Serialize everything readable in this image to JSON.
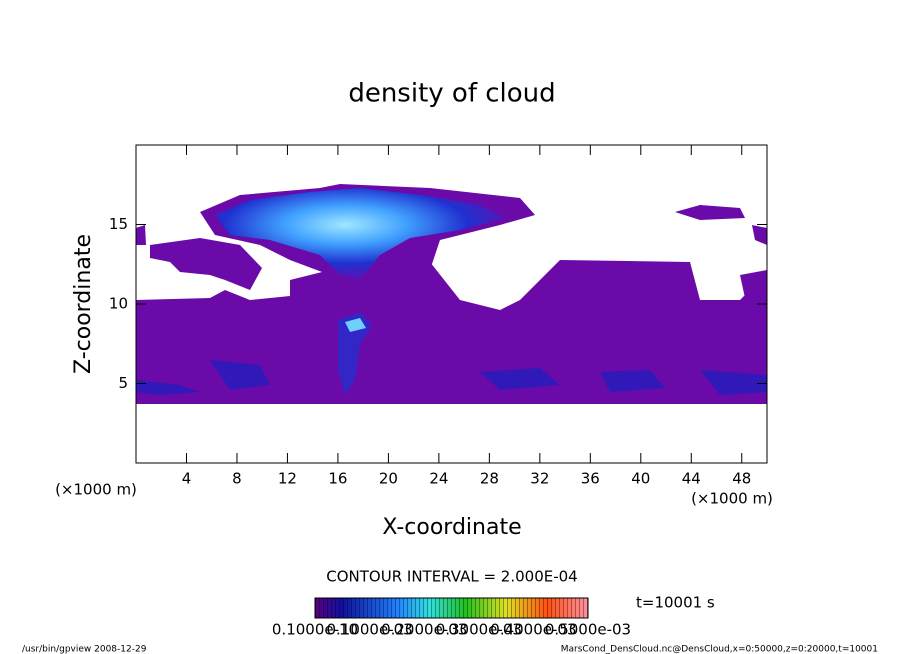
{
  "chart_data": {
    "type": "contour",
    "title": "density of cloud",
    "x_label": "X-coordinate",
    "y_label": "Z-coordinate",
    "x_unit": "(×1000 m)",
    "y_unit": "(×1000 m)",
    "xlim": [
      0,
      50
    ],
    "ylim": [
      0,
      20
    ],
    "xticks": [
      4,
      8,
      12,
      16,
      20,
      24,
      28,
      32,
      36,
      40,
      44,
      48
    ],
    "yticks": [
      5,
      10,
      15
    ],
    "contour_interval": "CONTOUR INTERVAL = 2.000E-04",
    "time_label": "t=10001 s",
    "clim": [
      0,
      0.0005
    ],
    "cticks": [
      {
        "value": 1e-11,
        "label": "0.1000e-10"
      },
      {
        "value": 0.0001,
        "label": "0.1000e-03"
      },
      {
        "value": 0.0002,
        "label": "0.2000e-03"
      },
      {
        "value": 0.0003,
        "label": "0.3000e-03"
      },
      {
        "value": 0.0004,
        "label": "0.4000e-03"
      },
      {
        "value": 0.0005,
        "label": "0.5000e-03"
      }
    ],
    "footer_left": "/usr/bin/gpview  2008-12-29",
    "footer_right": "MarsCond_DensCloud.nc@DensCloud,x=0:50000,z=0:20000,t=10001"
  }
}
